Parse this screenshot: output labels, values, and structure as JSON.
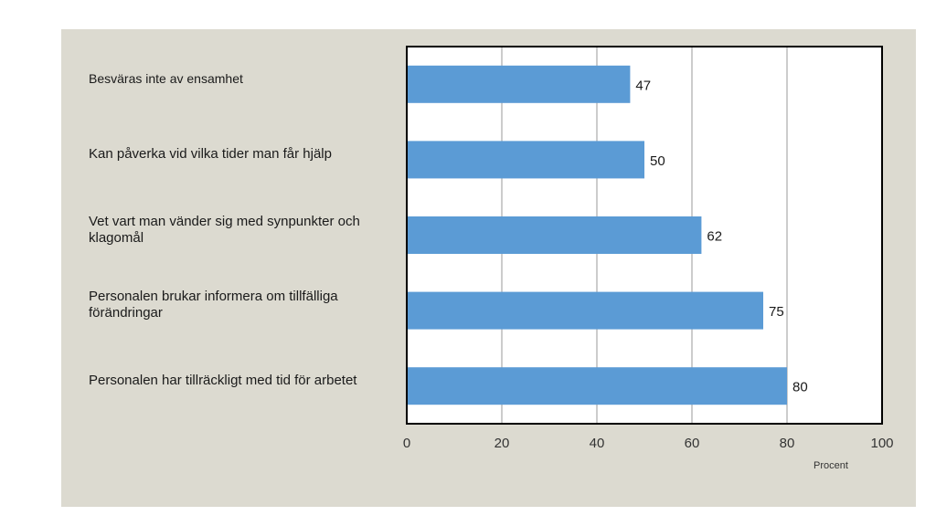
{
  "chart_data": {
    "type": "bar",
    "orientation": "horizontal",
    "categories": [
      "Besväras inte av ensamhet",
      "Kan påverka vid vilka tider man får hjälp",
      "Vet vart man vänder sig med synpunkter och klagomål",
      "Personalen brukar informera om tillfälliga förändringar",
      "Personalen har tillräckligt med tid för arbetet"
    ],
    "values": [
      47,
      50,
      62,
      75,
      80
    ],
    "xlabel": "Procent",
    "xlim": [
      0,
      100
    ],
    "xticks": [
      0,
      20,
      40,
      60,
      80,
      100
    ],
    "xtick_labels": [
      "0",
      "20",
      "40",
      "60",
      "80",
      "100"
    ],
    "data_labels": [
      "47",
      "50",
      "62",
      "75",
      "80"
    ],
    "grid": true,
    "bar_color": "#5b9bd5",
    "panel_color": "#dcdad0"
  }
}
